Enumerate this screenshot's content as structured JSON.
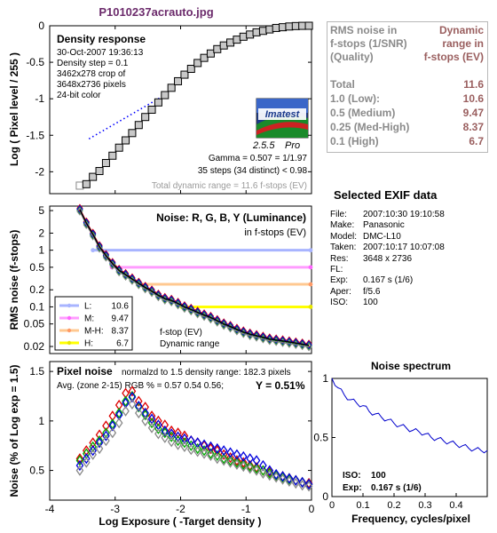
{
  "title": "P1010237acrauto.jpg",
  "colors": {
    "title": "#6b2a6b",
    "red": "#dd0000",
    "green": "#00aa00",
    "blue": "#0000dd",
    "gray": "#888888",
    "bar_L": "#a8b4ff",
    "bar_M": "#ff9cff",
    "bar_MH": "#ffc890",
    "bar_H": "#ffff00",
    "rms_label": "#8a8a8a",
    "rms_value": "#9a5f5f",
    "spectrum": "#0000cc"
  },
  "logo": {
    "name": "Imatest",
    "version": "2.5.5",
    "edition": "Pro",
    "icon": "imatest-logo"
  },
  "rms_table": {
    "header_left": [
      "RMS noise in",
      "f-stops (1/SNR)",
      "(Quality)"
    ],
    "header_right": [
      "Dynamic",
      "range in",
      "f-stops (EV)"
    ],
    "rows": [
      {
        "label": "Total",
        "value": "11.6"
      },
      {
        "label": "1.0   (Low):",
        "value": "10.6"
      },
      {
        "label": "0.5   (Medium)",
        "value": "9.47"
      },
      {
        "label": "0.25 (Med-High)",
        "value": "8.37"
      },
      {
        "label": "0.1   (High)",
        "value": "6.7"
      }
    ]
  },
  "exif": {
    "title": "Selected EXIF data",
    "rows": [
      {
        "k": "File:",
        "v": "2007:10:30 19:10:58"
      },
      {
        "k": "Make:",
        "v": "Panasonic"
      },
      {
        "k": "Model:",
        "v": "DMC-L10"
      },
      {
        "k": "Taken:",
        "v": "2007:10:17 10:07:08"
      },
      {
        "k": "Res:",
        "v": "3648 x 2736"
      },
      {
        "k": "FL:",
        "v": ""
      },
      {
        "k": "Exp:",
        "v": "0.167 s  (1/6)"
      },
      {
        "k": "Aper:",
        "v": "f/5.6"
      },
      {
        "k": "ISO:",
        "v": "100"
      }
    ]
  },
  "chart_data": [
    {
      "id": "density",
      "type": "scatter",
      "title": "Density response",
      "info": [
        "30-Oct-2007 19:36:13",
        "Density step = 0.1",
        "3462x278 crop of",
        "3648x2736 pixels",
        "24-bit color"
      ],
      "annotations": [
        "Gamma = 0.507 = 1/1.97",
        "35 steps (34 distinct) < 0.98",
        "Total dynamic range = 11.6 f-stops (EV)"
      ],
      "ylabel": "Log ( Pixel level / 255 )",
      "xlim": [
        -4,
        0
      ],
      "ylim": [
        -2.3,
        0
      ],
      "yticks": [
        0,
        -0.5,
        -1,
        -1.5,
        -2
      ],
      "x": [
        -3.54,
        -3.44,
        -3.34,
        -3.24,
        -3.14,
        -3.04,
        -2.94,
        -2.84,
        -2.74,
        -2.64,
        -2.54,
        -2.44,
        -2.34,
        -2.24,
        -2.14,
        -2.04,
        -1.94,
        -1.84,
        -1.74,
        -1.64,
        -1.54,
        -1.44,
        -1.34,
        -1.24,
        -1.14,
        -1.04,
        -0.94,
        -0.84,
        -0.74,
        -0.64,
        -0.54,
        -0.44,
        -0.34,
        -0.24,
        -0.14,
        -0.04
      ],
      "y": [
        -2.19,
        -2.17,
        -2.07,
        -1.99,
        -1.88,
        -1.78,
        -1.67,
        -1.57,
        -1.47,
        -1.36,
        -1.25,
        -1.15,
        -1.05,
        -0.95,
        -0.85,
        -0.76,
        -0.67,
        -0.59,
        -0.51,
        -0.44,
        -0.38,
        -0.32,
        -0.27,
        -0.23,
        -0.19,
        -0.15,
        -0.12,
        -0.09,
        -0.07,
        -0.05,
        -0.03,
        -0.02,
        -0.01,
        -0.004,
        -0.001,
        0
      ],
      "fit_line": {
        "x": [
          -3.4,
          -2.3
        ],
        "y": [
          -1.55,
          -0.98
        ]
      }
    },
    {
      "id": "rms_noise",
      "type": "line",
      "title": "Noise: R, G, B, Y (Luminance)",
      "subtitle": "in f-stops (EV)",
      "ylabel": "RMS noise (f-stops)",
      "xlim": [
        -4,
        0
      ],
      "yscale": "log",
      "ylim": [
        0.015,
        6
      ],
      "yticks": [
        5,
        2,
        1,
        0.5,
        0.2,
        0.1,
        0.05,
        0.02
      ],
      "ytick_labels": [
        "5",
        "2",
        "1",
        "0.5",
        "0.2",
        "0.1",
        "0.05",
        "0.02"
      ],
      "legend": [
        {
          "label": "L:",
          "value": "10.6"
        },
        {
          "label": "M:",
          "value": "9.47"
        },
        {
          "label": "M-H:",
          "value": "8.37"
        },
        {
          "label": "H:",
          "value": "6.7"
        }
      ],
      "legend_note": [
        "f-stop (EV)",
        "Dynamic range"
      ],
      "range_bars": [
        {
          "level": 1.0,
          "x_start": -3.34
        },
        {
          "level": 0.5,
          "x_start": -3.05
        },
        {
          "level": 0.25,
          "x_start": -2.6
        },
        {
          "level": 0.1,
          "x_start": -1.98
        }
      ],
      "x": [
        -3.54,
        -3.44,
        -3.34,
        -3.24,
        -3.14,
        -3.04,
        -2.94,
        -2.84,
        -2.74,
        -2.64,
        -2.54,
        -2.44,
        -2.34,
        -2.24,
        -2.14,
        -2.04,
        -1.94,
        -1.84,
        -1.74,
        -1.64,
        -1.54,
        -1.44,
        -1.34,
        -1.24,
        -1.14,
        -1.04,
        -0.94,
        -0.84,
        -0.74,
        -0.64,
        -0.54,
        -0.44,
        -0.34,
        -0.24,
        -0.14,
        -0.04
      ],
      "y": [
        5.2,
        3.0,
        1.9,
        1.15,
        0.8,
        0.58,
        0.44,
        0.37,
        0.31,
        0.26,
        0.22,
        0.19,
        0.16,
        0.14,
        0.13,
        0.115,
        0.1,
        0.09,
        0.08,
        0.072,
        0.065,
        0.057,
        0.05,
        0.045,
        0.04,
        0.036,
        0.033,
        0.031,
        0.029,
        0.027,
        0.026,
        0.025,
        0.024,
        0.023,
        0.022,
        0.021
      ]
    },
    {
      "id": "pixel_noise",
      "type": "scatter",
      "title": "Pixel noise",
      "note": "normalzd to 1.5 density range: 182.3 pixels",
      "stats": "Avg. (zone 2-15) RGB % = 0.57  0.54  0.56;",
      "y_stat": "Y = 0.51%",
      "ylabel": "Noise (% of Log exp = 1.5)",
      "xlabel": "Log Exposure ( -Target density )",
      "xlim": [
        -4,
        0
      ],
      "xticks": [
        -4,
        -3,
        -2,
        -1,
        0
      ],
      "ylim": [
        0.2,
        1.6
      ],
      "yticks": [
        1.5,
        1,
        0.5
      ],
      "x": [
        -3.54,
        -3.44,
        -3.34,
        -3.24,
        -3.14,
        -3.04,
        -2.94,
        -2.84,
        -2.74,
        -2.64,
        -2.54,
        -2.44,
        -2.34,
        -2.24,
        -2.14,
        -2.04,
        -1.94,
        -1.84,
        -1.74,
        -1.64,
        -1.54,
        -1.44,
        -1.34,
        -1.24,
        -1.14,
        -1.04,
        -0.94,
        -0.84,
        -0.74,
        -0.64,
        -0.54,
        -0.44,
        -0.34,
        -0.24,
        -0.14,
        -0.04
      ],
      "series": [
        {
          "values": [
            0.62,
            0.7,
            0.78,
            0.86,
            0.95,
            1.05,
            1.16,
            1.28,
            1.3,
            1.2,
            1.14,
            1.05,
            1.0,
            0.96,
            0.9,
            0.88,
            0.85,
            0.8,
            0.78,
            0.75,
            0.72,
            0.7,
            0.66,
            0.63,
            0.6,
            0.58,
            0.55,
            0.53,
            0.5,
            0.48,
            0.45,
            0.44,
            0.42,
            0.4,
            0.38,
            0.37
          ]
        },
        {
          "values": [
            0.6,
            0.67,
            0.74,
            0.8,
            0.88,
            0.97,
            1.08,
            1.2,
            1.25,
            1.14,
            1.06,
            0.98,
            0.92,
            0.88,
            0.84,
            0.8,
            0.78,
            0.75,
            0.72,
            0.7,
            0.67,
            0.65,
            0.62,
            0.6,
            0.58,
            0.56,
            0.54,
            0.52,
            0.5,
            0.47,
            0.45,
            0.43,
            0.41,
            0.4,
            0.38,
            0.36
          ]
        },
        {
          "values": [
            0.55,
            0.62,
            0.7,
            0.78,
            0.85,
            0.95,
            1.06,
            1.18,
            1.24,
            1.15,
            1.08,
            1.02,
            0.96,
            0.9,
            0.87,
            0.84,
            0.82,
            0.8,
            0.78,
            0.76,
            0.74,
            0.72,
            0.7,
            0.68,
            0.66,
            0.64,
            0.62,
            0.6,
            0.55,
            0.5,
            0.46,
            0.44,
            0.42,
            0.4,
            0.38,
            0.36
          ]
        },
        {
          "values": [
            0.5,
            0.58,
            0.66,
            0.72,
            0.8,
            0.88,
            0.98,
            1.1,
            1.17,
            1.08,
            1.0,
            0.93,
            0.87,
            0.83,
            0.79,
            0.76,
            0.74,
            0.71,
            0.69,
            0.67,
            0.65,
            0.62,
            0.6,
            0.58,
            0.56,
            0.54,
            0.52,
            0.5,
            0.47,
            0.45,
            0.43,
            0.41,
            0.39,
            0.37,
            0.35,
            0.34
          ]
        }
      ]
    },
    {
      "id": "noise_spectrum",
      "type": "line",
      "title": "Noise spectrum",
      "xlabel": "Frequency, cycles/pixel",
      "xlim": [
        0,
        0.5
      ],
      "xticks": [
        0,
        0.1,
        0.2,
        0.3,
        0.4
      ],
      "ylim": [
        0,
        1
      ],
      "yticks": [
        1,
        0.5,
        0
      ],
      "annotations": [
        {
          "label": "ISO:",
          "value": "100"
        },
        {
          "label": "Exp:",
          "value": "0.167 s  (1/6)"
        }
      ],
      "x": [
        0.0,
        0.02,
        0.04,
        0.06,
        0.08,
        0.1,
        0.12,
        0.14,
        0.16,
        0.18,
        0.2,
        0.22,
        0.24,
        0.26,
        0.28,
        0.3,
        0.32,
        0.34,
        0.36,
        0.38,
        0.4,
        0.42,
        0.44,
        0.46,
        0.48,
        0.5
      ],
      "y": [
        1.0,
        0.92,
        0.86,
        0.82,
        0.79,
        0.77,
        0.72,
        0.7,
        0.67,
        0.65,
        0.62,
        0.6,
        0.58,
        0.56,
        0.55,
        0.53,
        0.5,
        0.49,
        0.47,
        0.46,
        0.44,
        0.43,
        0.41,
        0.4,
        0.39,
        0.39
      ]
    }
  ]
}
